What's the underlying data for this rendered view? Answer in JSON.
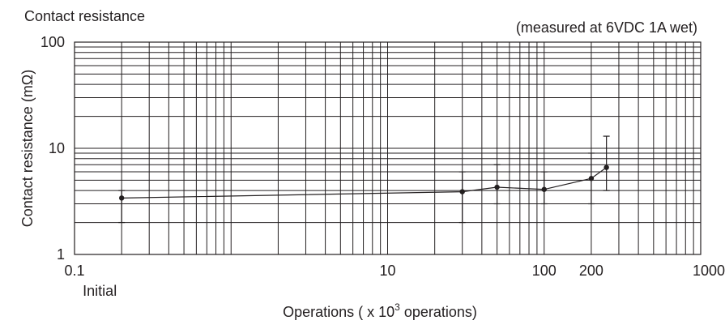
{
  "chart_data": {
    "type": "line",
    "title": "Contact resistance",
    "subtitle": "(measured at 6VDC 1A wet)",
    "xlabel": "Operations ( x 10",
    "xlabel_sup": "3",
    "xlabel_suffix": " operations)",
    "ylabel": "Contact resistance (mΩ)",
    "x_scale": "log",
    "y_scale": "log",
    "xlim": [
      0.1,
      1000
    ],
    "ylim": [
      1,
      100
    ],
    "grid": true,
    "x_ticks": [
      {
        "value": 0.1,
        "label": "0.1"
      },
      {
        "value": 10,
        "label": "10"
      },
      {
        "value": 100,
        "label": "100"
      },
      {
        "value": 200,
        "label": "200"
      },
      {
        "value": 1000,
        "label": "1000"
      }
    ],
    "y_ticks": [
      {
        "value": 1,
        "label": "1"
      },
      {
        "value": 10,
        "label": "10"
      },
      {
        "value": 100,
        "label": "100"
      }
    ],
    "annotations": [
      {
        "text": "Initial",
        "x": 0.2
      }
    ],
    "series": [
      {
        "x": [
          0.2,
          30,
          50,
          100,
          200,
          250
        ],
        "y": [
          3.4,
          3.9,
          4.3,
          4.1,
          5.2,
          6.6
        ],
        "y_min": [
          2.0,
          2.0,
          3.0,
          3.0,
          3.0,
          4.0
        ],
        "y_max": [
          4.0,
          6.0,
          7.0,
          6.0,
          9.0,
          13.0
        ]
      }
    ],
    "colors": {
      "ink": "#231f20",
      "background": "#ffffff"
    }
  }
}
